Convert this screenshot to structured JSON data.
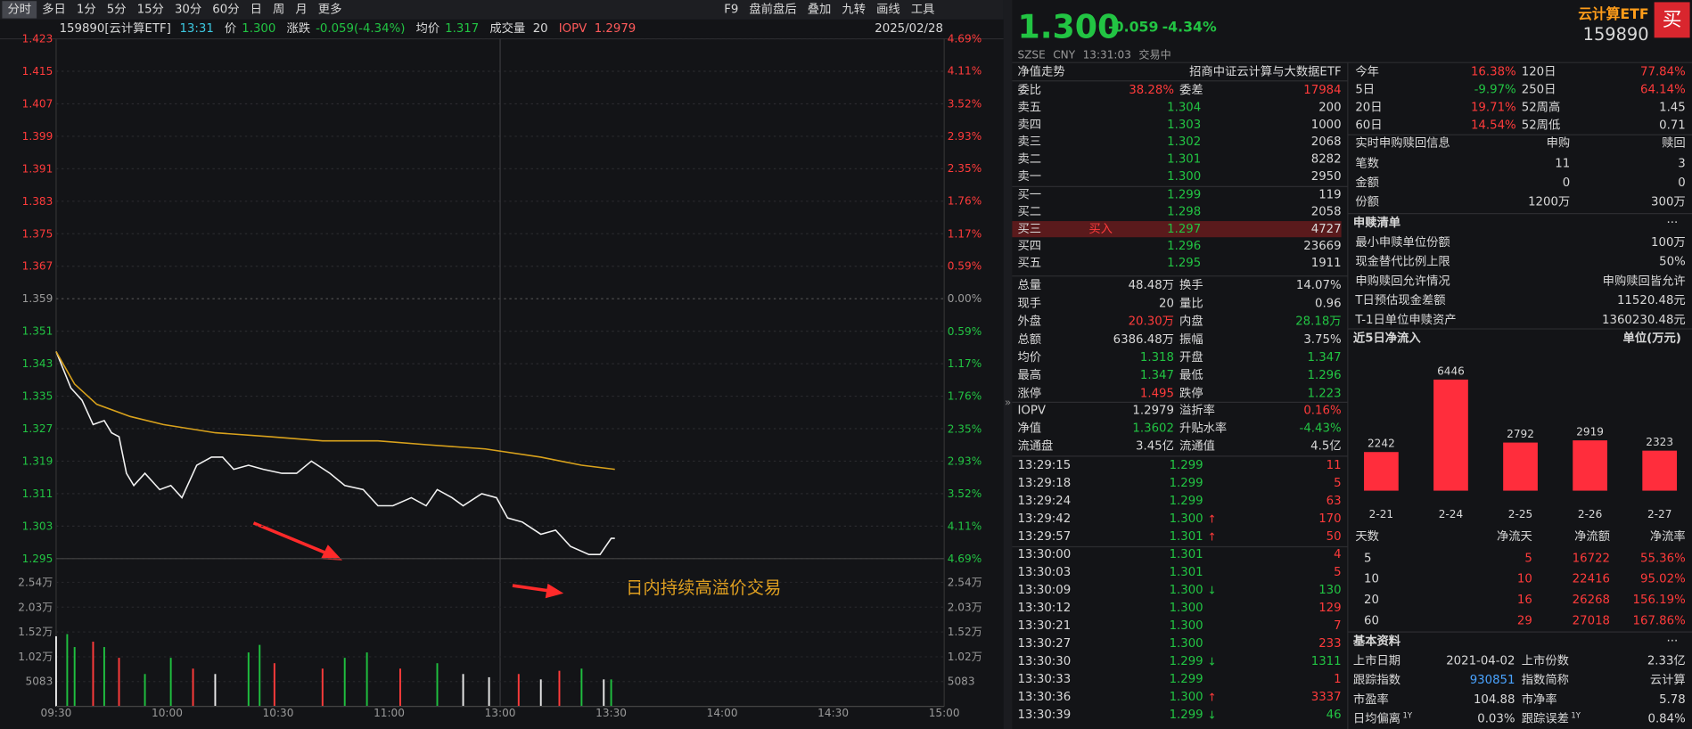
{
  "toolbar": {
    "periods": [
      "分时",
      "多日",
      "1分",
      "5分",
      "15分",
      "30分",
      "60分",
      "日",
      "周",
      "月",
      "更多"
    ],
    "active_period": 0,
    "tools": [
      "F9",
      "盘前盘后",
      "叠加",
      "九转",
      "画线",
      "工具"
    ]
  },
  "infobar": {
    "code": "159890[云计算ETF]",
    "time": "13:31",
    "price_label": "价",
    "price": "1.300",
    "change_label": "涨跌",
    "change": "-0.059(-4.34%)",
    "avg_label": "均价",
    "avg": "1.317",
    "vol_label": "成交量",
    "vol": "20",
    "iopv_label": "IOPV",
    "iopv": "1.2979",
    "date": "2025/02/28"
  },
  "chart_data": [
    {
      "type": "line",
      "annotation": "日内持续高溢价交易",
      "xlim": [
        0,
        240
      ],
      "xticks": [
        {
          "value": 0,
          "label": "09:30"
        },
        {
          "value": 30,
          "label": "10:00"
        },
        {
          "value": 60,
          "label": "10:30"
        },
        {
          "value": 90,
          "label": "11:00"
        },
        {
          "value": 120,
          "label": "13:00"
        },
        {
          "value": 150,
          "label": "13:30"
        },
        {
          "value": 180,
          "label": "14:00"
        },
        {
          "value": 210,
          "label": "14:30"
        },
        {
          "value": 240,
          "label": "15:00"
        }
      ],
      "session_break": 120,
      "ylim": [
        1.295,
        1.423
      ],
      "yticks": [
        1.423,
        1.415,
        1.407,
        1.399,
        1.391,
        1.383,
        1.375,
        1.367,
        1.359,
        1.351,
        1.343,
        1.335,
        1.327,
        1.319,
        1.311,
        1.303,
        1.295
      ],
      "y2lim": [
        -4.69,
        4.69
      ],
      "y2ticks": [
        {
          "value": 4.69,
          "label": "4.69%"
        },
        {
          "value": 4.11,
          "label": "4.11%"
        },
        {
          "value": 3.52,
          "label": "3.52%"
        },
        {
          "value": 2.93,
          "label": "2.93%"
        },
        {
          "value": 2.35,
          "label": "2.35%"
        },
        {
          "value": 1.76,
          "label": "1.76%"
        },
        {
          "value": 1.17,
          "label": "1.17%"
        },
        {
          "value": 0.59,
          "label": "0.59%"
        },
        {
          "value": 0,
          "label": "0.00%"
        },
        {
          "value": -0.59,
          "label": "0.59%"
        },
        {
          "value": -1.17,
          "label": "1.17%"
        },
        {
          "value": -1.76,
          "label": "1.76%"
        },
        {
          "value": -2.35,
          "label": "2.35%"
        },
        {
          "value": -2.93,
          "label": "2.93%"
        },
        {
          "value": -3.52,
          "label": "3.52%"
        },
        {
          "value": -4.11,
          "label": "4.11%"
        },
        {
          "value": -4.69,
          "label": "4.69%"
        }
      ],
      "grid": true,
      "series": [
        {
          "color": "#f2f2f2",
          "x": [
            0,
            4,
            7,
            10,
            13,
            15,
            17,
            19,
            21,
            24,
            28,
            31,
            34,
            38,
            42,
            45,
            48,
            52,
            56,
            61,
            65,
            69,
            74,
            78,
            83,
            87,
            91,
            96,
            100,
            103,
            107,
            110,
            115,
            119,
            122,
            126,
            131,
            135,
            139,
            144,
            147,
            150,
            151
          ],
          "values": [
            1.346,
            1.337,
            1.334,
            1.328,
            1.329,
            1.326,
            1.325,
            1.316,
            1.313,
            1.316,
            1.312,
            1.313,
            1.31,
            1.318,
            1.32,
            1.32,
            1.317,
            1.318,
            1.317,
            1.316,
            1.316,
            1.319,
            1.316,
            1.313,
            1.312,
            1.308,
            1.308,
            1.31,
            1.308,
            1.312,
            1.31,
            1.308,
            1.311,
            1.31,
            1.305,
            1.304,
            1.301,
            1.302,
            1.298,
            1.296,
            1.296,
            1.3,
            1.3
          ]
        },
        {
          "color": "#d9a21c",
          "x": [
            0,
            5,
            11,
            20,
            29,
            43,
            58,
            72,
            87,
            101,
            116,
            131,
            142,
            151
          ],
          "values": [
            1.346,
            1.338,
            1.333,
            1.33,
            1.328,
            1.326,
            1.325,
            1.324,
            1.324,
            1.323,
            1.322,
            1.32,
            1.318,
            1.317
          ]
        }
      ]
    },
    {
      "type": "bar",
      "xlim": [
        0,
        240
      ],
      "ylim": [
        0,
        25415
      ],
      "yticks": [
        {
          "value": 25415,
          "label": "2.54万"
        },
        {
          "value": 20332,
          "label": "2.03万"
        },
        {
          "value": 15249,
          "label": "1.52万"
        },
        {
          "value": 10166,
          "label": "1.02万"
        },
        5083
      ],
      "series": [
        {
          "color": "#ff3b3b",
          "x": [
            10,
            17,
            37,
            59,
            72,
            93,
            125,
            136
          ],
          "values": [
            13260,
            9945,
            7735,
            8840,
            7735,
            7735,
            6630,
            7293
          ]
        },
        {
          "color": "#1fbf3f",
          "x": [
            3,
            5,
            13,
            24,
            31,
            52,
            55,
            78,
            84,
            103,
            142,
            150
          ],
          "values": [
            14807,
            12155,
            12155,
            6630,
            9945,
            11050,
            12597,
            9945,
            11050,
            8840,
            7735,
            5525
          ]
        },
        {
          "color": "#e8e8e8",
          "x": [
            0,
            43,
            110,
            117,
            131,
            148
          ],
          "values": [
            14365,
            6630,
            6630,
            5967,
            5525,
            5525
          ]
        }
      ]
    },
    {
      "type": "bar",
      "title": "近5日净流入",
      "unit": "单位(万元)",
      "categories": [
        "2-21",
        "2-24",
        "2-25",
        "2-26",
        "2-27"
      ],
      "values": [
        2242,
        6446,
        2792,
        2919,
        2323
      ],
      "color": "#ff2d3c"
    }
  ],
  "quote": {
    "price": "1.300",
    "change": "-0.059",
    "pct": "-4.34%",
    "name": "云计算ETF",
    "code": "159890",
    "buy_button": "买",
    "market": "SZSE",
    "currency": "CNY",
    "time": "13:31:03",
    "status": "交易中"
  },
  "nav": {
    "label": "净值走势",
    "fund": "招商中证云计算与大数据ETF"
  },
  "orderbook": {
    "ratio": [
      "委比",
      "38.28%",
      "委差",
      "17984"
    ],
    "ratio_tones": "wrwr",
    "asks": [
      [
        "卖五",
        "1.304",
        "200"
      ],
      [
        "卖四",
        "1.303",
        "1000"
      ],
      [
        "卖三",
        "1.302",
        "2068"
      ],
      [
        "卖二",
        "1.301",
        "8282"
      ],
      [
        "卖一",
        "1.300",
        "2950"
      ]
    ],
    "bids": [
      [
        "买一",
        "1.299",
        "119"
      ],
      [
        "买二",
        "1.298",
        "2058"
      ],
      [
        "买三",
        "1.297",
        "4727"
      ],
      [
        "买四",
        "1.296",
        "23669"
      ],
      [
        "买五",
        "1.295",
        "1911"
      ]
    ],
    "bid_action": "买入",
    "bid_action_row": 2
  },
  "stats": [
    [
      "总量",
      "48.48万",
      "换手",
      "14.07%"
    ],
    [
      "现手",
      "20",
      "量比",
      "0.96"
    ],
    [
      "外盘",
      "20.30万",
      "内盘",
      "28.18万"
    ],
    [
      "总额",
      "6386.48万",
      "振幅",
      "3.75%"
    ],
    [
      "均价",
      "1.318",
      "开盘",
      "1.347"
    ],
    [
      "最高",
      "1.347",
      "最低",
      "1.296"
    ],
    [
      "涨停",
      "1.495",
      "跌停",
      "1.223"
    ]
  ],
  "stats_tones": [
    "wwww",
    "wwww",
    "wrwg",
    "wwww",
    "wgwg",
    "wgwg",
    "wrwg"
  ],
  "iopv_rows": [
    [
      "IOPV",
      "1.2979",
      "溢折率",
      "0.16%"
    ],
    [
      "净值",
      "1.3602",
      "升贴水率",
      "-4.43%"
    ],
    [
      "流通盘",
      "3.45亿",
      "流通值",
      "4.5亿"
    ]
  ],
  "iopv_tones": [
    "wwwr",
    "wgwg",
    "wwww"
  ],
  "trades": [
    {
      "time": "13:29:15",
      "price": "1.299",
      "vol": "11",
      "side": "r"
    },
    {
      "time": "13:29:18",
      "price": "1.299",
      "vol": "5",
      "side": "r"
    },
    {
      "time": "13:29:24",
      "price": "1.299",
      "vol": "63",
      "side": "r"
    },
    {
      "time": "13:29:42",
      "price": "1.300",
      "arrow": "↑",
      "vol": "170",
      "side": "r"
    },
    {
      "time": "13:29:57",
      "price": "1.301",
      "arrow": "↑",
      "vol": "50",
      "side": "r"
    },
    {
      "time": "13:30:00",
      "price": "1.301",
      "vol": "4",
      "side": "r"
    },
    {
      "time": "13:30:03",
      "price": "1.301",
      "vol": "5",
      "side": "r"
    },
    {
      "time": "13:30:09",
      "price": "1.300",
      "arrow": "↓",
      "vol": "130",
      "side": "g"
    },
    {
      "time": "13:30:12",
      "price": "1.300",
      "vol": "129",
      "side": "r"
    },
    {
      "time": "13:30:21",
      "price": "1.300",
      "vol": "7",
      "side": "r"
    },
    {
      "time": "13:30:27",
      "price": "1.300",
      "vol": "233",
      "side": "r"
    },
    {
      "time": "13:30:30",
      "price": "1.299",
      "arrow": "↓",
      "vol": "1311",
      "side": "g"
    },
    {
      "time": "13:30:33",
      "price": "1.299",
      "vol": "1",
      "side": "r"
    },
    {
      "time": "13:30:36",
      "price": "1.300",
      "arrow": "↑",
      "vol": "3337",
      "side": "r"
    },
    {
      "time": "13:30:39",
      "price": "1.299",
      "arrow": "↓",
      "vol": "46",
      "side": "g"
    }
  ],
  "periods": [
    [
      "今年",
      "16.38%",
      "120日",
      "77.84%"
    ],
    [
      "5日",
      "-9.97%",
      "250日",
      "64.14%"
    ],
    [
      "20日",
      "19.71%",
      "52周高",
      "1.45"
    ],
    [
      "60日",
      "14.54%",
      "52周低",
      "0.71"
    ]
  ],
  "periods_tones": [
    "wrwr",
    "wgwr",
    "wrww",
    "wrww"
  ],
  "creation": {
    "title": "实时申购赎回信息",
    "cols": [
      "申购",
      "赎回"
    ],
    "rows": [
      [
        "笔数",
        "11",
        "3"
      ],
      [
        "金额",
        "0",
        "0"
      ],
      [
        "份额",
        "1200万",
        "300万"
      ]
    ]
  },
  "basket": {
    "title": "申赎清单",
    "more": "···",
    "rows": [
      [
        "最小申赎单位份额",
        "100万"
      ],
      [
        "现金替代比例上限",
        "50%"
      ],
      [
        "申购赎回允许情况",
        "申购赎回皆允许"
      ],
      [
        "T日预估现金差额",
        "11520.48元"
      ],
      [
        "T-1日单位申赎资产",
        "1360230.48元"
      ]
    ]
  },
  "flows": {
    "header": [
      "天数",
      "净流天",
      "净流额",
      "净流率"
    ],
    "rows": [
      [
        "5",
        "5",
        "16722",
        "55.36%"
      ],
      [
        "10",
        "10",
        "22416",
        "95.02%"
      ],
      [
        "20",
        "16",
        "26268",
        "156.19%"
      ],
      [
        "60",
        "29",
        "27018",
        "167.86%"
      ]
    ]
  },
  "profile": {
    "title": "基本资料",
    "more": "···",
    "rows": [
      [
        "上市日期",
        "2021-04-02",
        "上市份数",
        "2.33亿"
      ],
      [
        "跟踪指数",
        "930851",
        "指数简称",
        "云计算"
      ],
      [
        "市盈率",
        "104.88",
        "市净率",
        "5.78"
      ],
      [
        "日均偏离",
        "0.03%",
        "跟踪误差",
        "0.84%"
      ]
    ],
    "tones": [
      "wwww",
      "wbww",
      "wwww",
      "wwww"
    ],
    "sup_row": 3,
    "sups": [
      "1Y",
      "1Y"
    ]
  }
}
